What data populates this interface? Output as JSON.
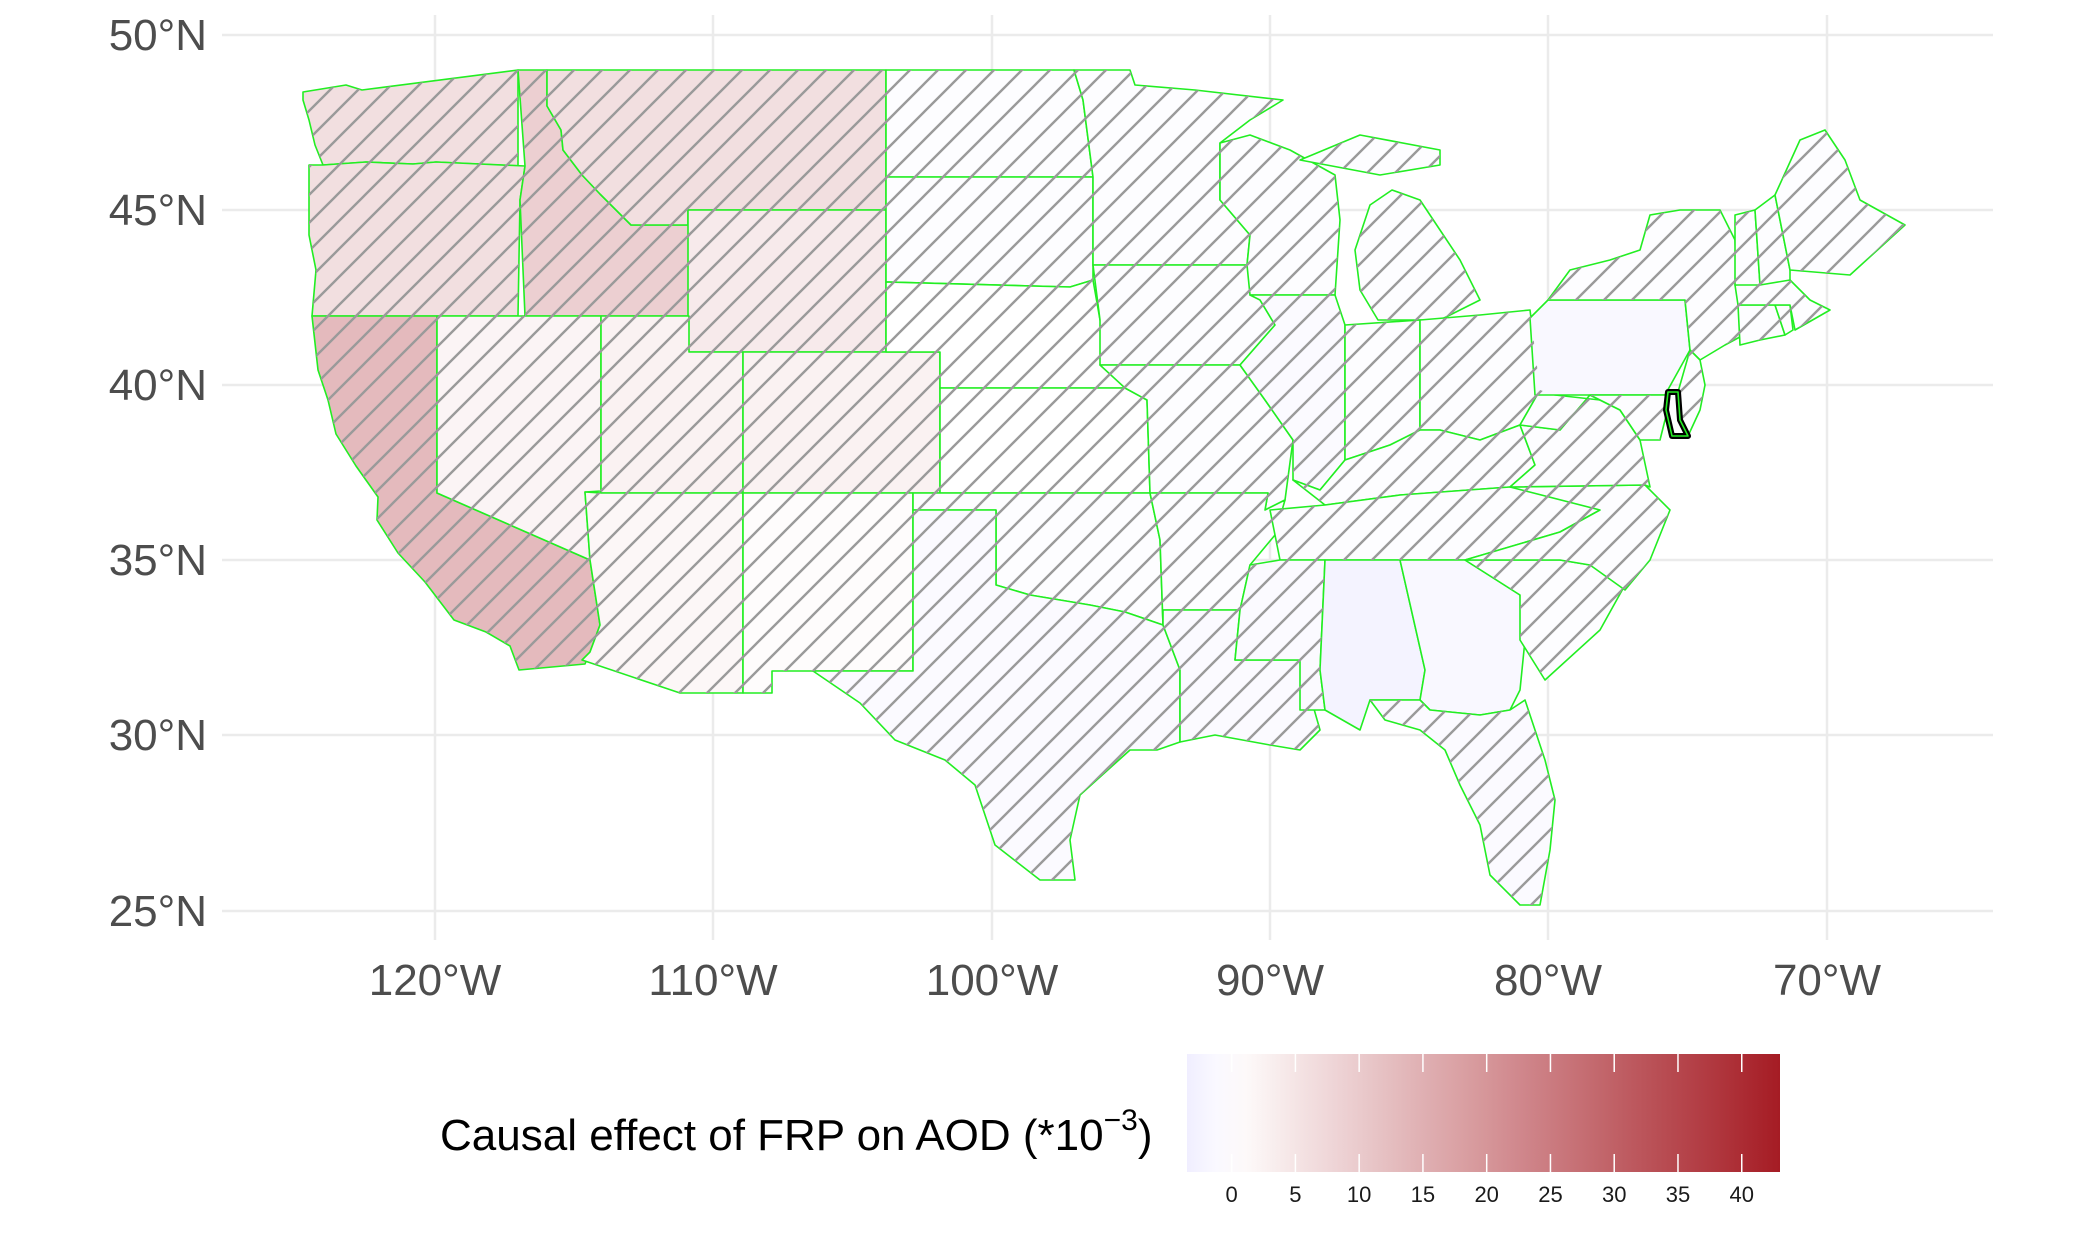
{
  "legend": {
    "title_main": "Causal effect of FRP on AOD (*10",
    "title_exp": "−3",
    "title_close": ")",
    "ticks": [
      "0",
      "5",
      "10",
      "15",
      "20",
      "25",
      "30",
      "35",
      "40"
    ],
    "range": [
      -3.5,
      43
    ],
    "colors": {
      "low": "#f0eeff",
      "mid": "#ffffff",
      "high": "#a51c24"
    },
    "position": "bottom"
  },
  "axes": {
    "lat_ticks": [
      "25°N",
      "30°N",
      "35°N",
      "40°N",
      "45°N",
      "50°N"
    ],
    "lon_ticks": [
      "120°W",
      "110°W",
      "100°W",
      "90°W",
      "80°W",
      "70°W"
    ]
  },
  "colors": {
    "state_border": "#22ee22",
    "hatch": "#9a9a9a",
    "highlight_outline": "#000000",
    "grid": "#ebebeb"
  },
  "map_data": {
    "type": "choropleth",
    "region": "Contiguous United States",
    "lat_range": [
      24.5,
      50
    ],
    "lon_range": [
      -126,
      -66
    ],
    "regions": [
      {
        "name": "Washington",
        "value": 6,
        "hatched": true
      },
      {
        "name": "Oregon",
        "value": 6,
        "hatched": true
      },
      {
        "name": "California",
        "value": 13,
        "hatched": true
      },
      {
        "name": "Idaho",
        "value": 9,
        "hatched": true
      },
      {
        "name": "Nevada",
        "value": 2,
        "hatched": true
      },
      {
        "name": "Montana",
        "value": 6,
        "hatched": true
      },
      {
        "name": "Wyoming",
        "value": 4,
        "hatched": true
      },
      {
        "name": "Utah",
        "value": 2.5,
        "hatched": true
      },
      {
        "name": "Arizona",
        "value": 1.5,
        "hatched": true
      },
      {
        "name": "Colorado",
        "value": 2.5,
        "hatched": true
      },
      {
        "name": "New Mexico",
        "value": 0.5,
        "hatched": true
      },
      {
        "name": "North Dakota",
        "value": -0.5,
        "hatched": true
      },
      {
        "name": "South Dakota",
        "value": -0.5,
        "hatched": true
      },
      {
        "name": "Nebraska",
        "value": 0,
        "hatched": true
      },
      {
        "name": "Kansas",
        "value": 0,
        "hatched": true
      },
      {
        "name": "Oklahoma",
        "value": -0.5,
        "hatched": true
      },
      {
        "name": "Texas",
        "value": -1,
        "hatched": true
      },
      {
        "name": "Minnesota",
        "value": -0.5,
        "hatched": true
      },
      {
        "name": "Iowa",
        "value": -0.5,
        "hatched": true
      },
      {
        "name": "Missouri",
        "value": -0.5,
        "hatched": true
      },
      {
        "name": "Arkansas",
        "value": -0.5,
        "hatched": true
      },
      {
        "name": "Louisiana",
        "value": -1,
        "hatched": true
      },
      {
        "name": "Wisconsin",
        "value": -0.5,
        "hatched": true
      },
      {
        "name": "Illinois",
        "value": -1,
        "hatched": true
      },
      {
        "name": "Michigan",
        "value": -0.5,
        "hatched": true
      },
      {
        "name": "Indiana",
        "value": -0.5,
        "hatched": true
      },
      {
        "name": "Ohio",
        "value": -0.5,
        "hatched": true
      },
      {
        "name": "Kentucky",
        "value": -0.5,
        "hatched": true
      },
      {
        "name": "Tennessee",
        "value": -0.5,
        "hatched": true
      },
      {
        "name": "Mississippi",
        "value": -1,
        "hatched": true
      },
      {
        "name": "Alabama",
        "value": -2.5,
        "hatched": false
      },
      {
        "name": "Georgia",
        "value": -1.5,
        "hatched": false
      },
      {
        "name": "Florida",
        "value": -1,
        "hatched": true
      },
      {
        "name": "South Carolina",
        "value": -0.5,
        "hatched": true
      },
      {
        "name": "North Carolina",
        "value": -0.5,
        "hatched": true
      },
      {
        "name": "Virginia",
        "value": -0.5,
        "hatched": true
      },
      {
        "name": "West Virginia",
        "value": -0.5,
        "hatched": true
      },
      {
        "name": "Pennsylvania",
        "value": -1.5,
        "hatched": false
      },
      {
        "name": "New York",
        "value": -0.5,
        "hatched": true
      },
      {
        "name": "Maryland",
        "value": -0.5,
        "hatched": true
      },
      {
        "name": "Delaware",
        "value": -0.5,
        "hatched": false,
        "highlighted": true
      },
      {
        "name": "New Jersey",
        "value": -0.5,
        "hatched": true
      },
      {
        "name": "Connecticut",
        "value": -0.5,
        "hatched": true
      },
      {
        "name": "Rhode Island",
        "value": -0.5,
        "hatched": true
      },
      {
        "name": "Massachusetts",
        "value": -0.5,
        "hatched": true
      },
      {
        "name": "Vermont",
        "value": -0.5,
        "hatched": true
      },
      {
        "name": "New Hampshire",
        "value": -0.5,
        "hatched": true
      },
      {
        "name": "Maine",
        "value": -0.5,
        "hatched": true
      }
    ]
  }
}
